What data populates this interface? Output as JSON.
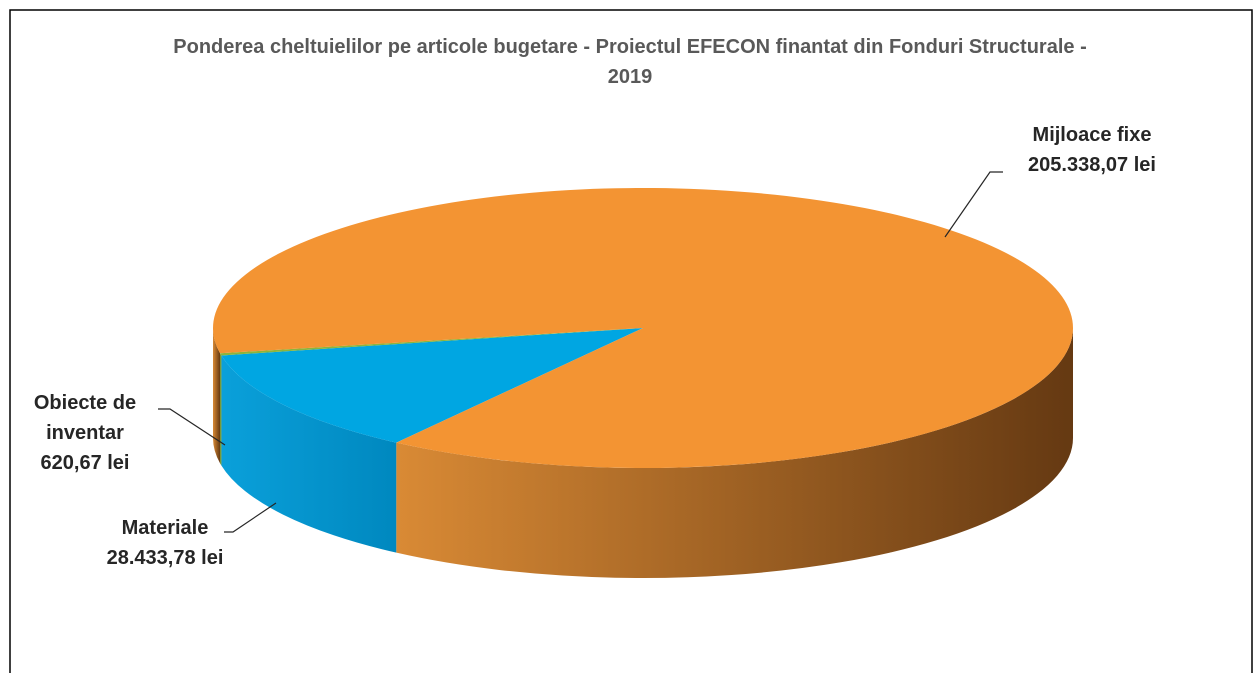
{
  "chart_data": {
    "type": "pie",
    "title": "Ponderea cheltuielilor pe articole bugetare - Proiectul EFECON finantat din Fonduri Structurale - 2019",
    "categories": [
      "Materiale",
      "Obiecte de inventar",
      "Mijloace fixe"
    ],
    "values": [
      28433.78,
      620.67,
      205338.07
    ],
    "value_labels": [
      "28.433,78 lei",
      "620,67 lei",
      "205.338,07 lei"
    ],
    "colors": [
      "#00a6e2",
      "#8cb43c",
      "#f39433"
    ]
  }
}
